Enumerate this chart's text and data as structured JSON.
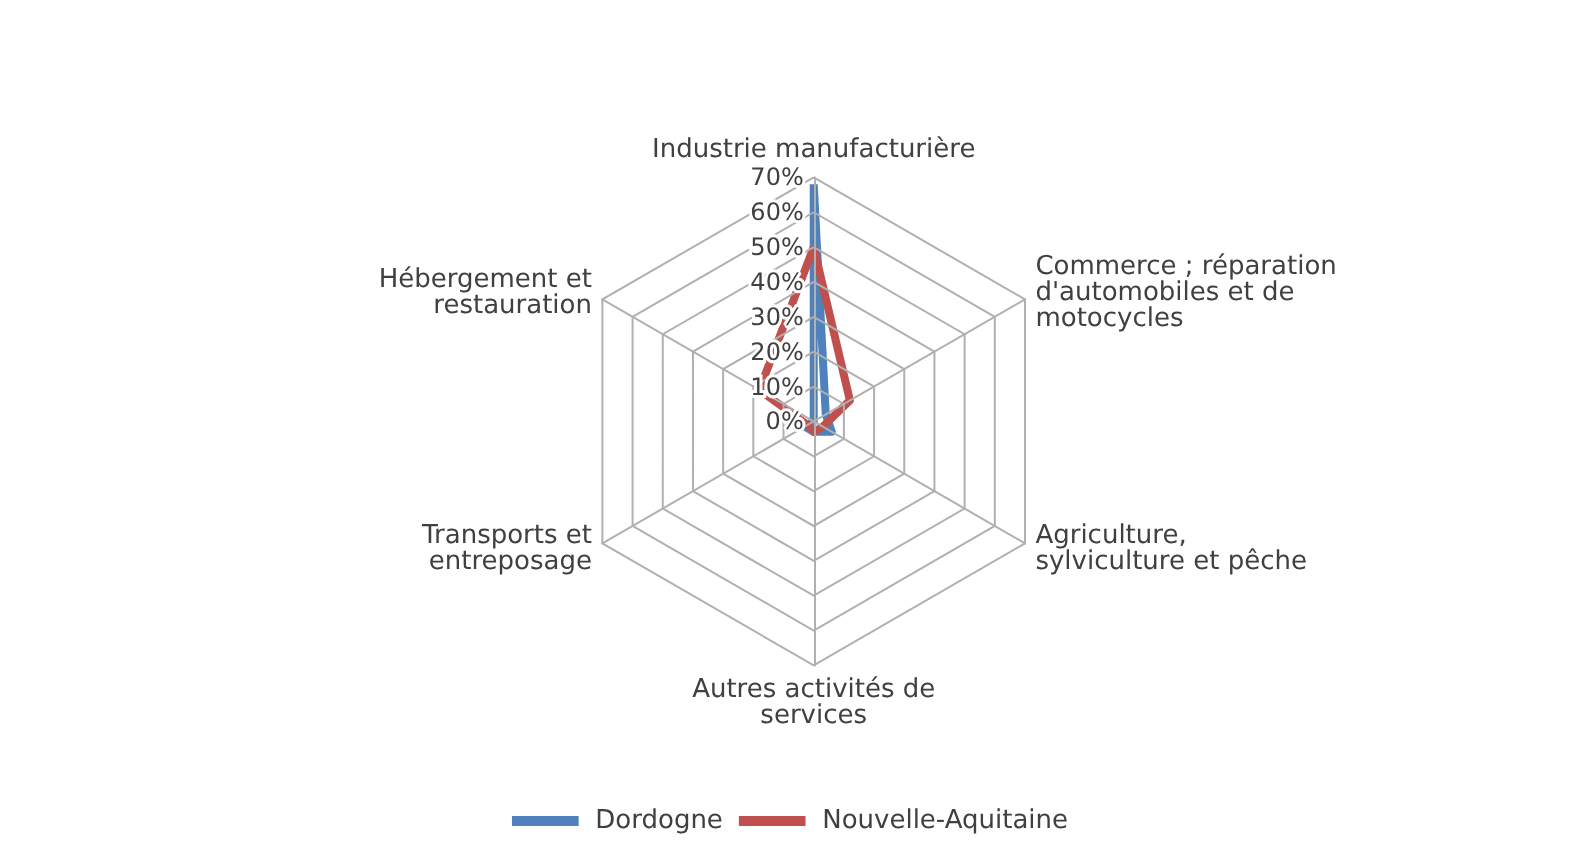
{
  "chart_data": {
    "type": "radar",
    "categories": [
      "Industrie manufacturière",
      "Commerce ; réparation d'automobiles et de motocycles",
      "Agriculture, sylviculture et pêche",
      "Autres activités de services",
      "Transports et entreposage",
      "Hébergement et restauration"
    ],
    "series": [
      {
        "name": "Dordogne",
        "color": "#4f81bd",
        "values": [
          68,
          4,
          6,
          3,
          3,
          0
        ]
      },
      {
        "name": "Nouvelle-Aquitaine",
        "color": "#c0504d",
        "values": [
          50,
          12,
          3,
          3,
          2,
          18
        ]
      }
    ],
    "ylim": [
      0,
      70
    ],
    "yticks": [
      {
        "value": 0,
        "label": "0%"
      },
      {
        "value": 10,
        "label": "10%"
      },
      {
        "value": 20,
        "label": "20%"
      },
      {
        "value": 30,
        "label": "30%"
      },
      {
        "value": 40,
        "label": "40%"
      },
      {
        "value": 50,
        "label": "50%"
      },
      {
        "value": 60,
        "label": "60%"
      },
      {
        "value": 70,
        "label": "70%"
      }
    ],
    "legend": "bottom",
    "marker": "none",
    "grid": true
  }
}
